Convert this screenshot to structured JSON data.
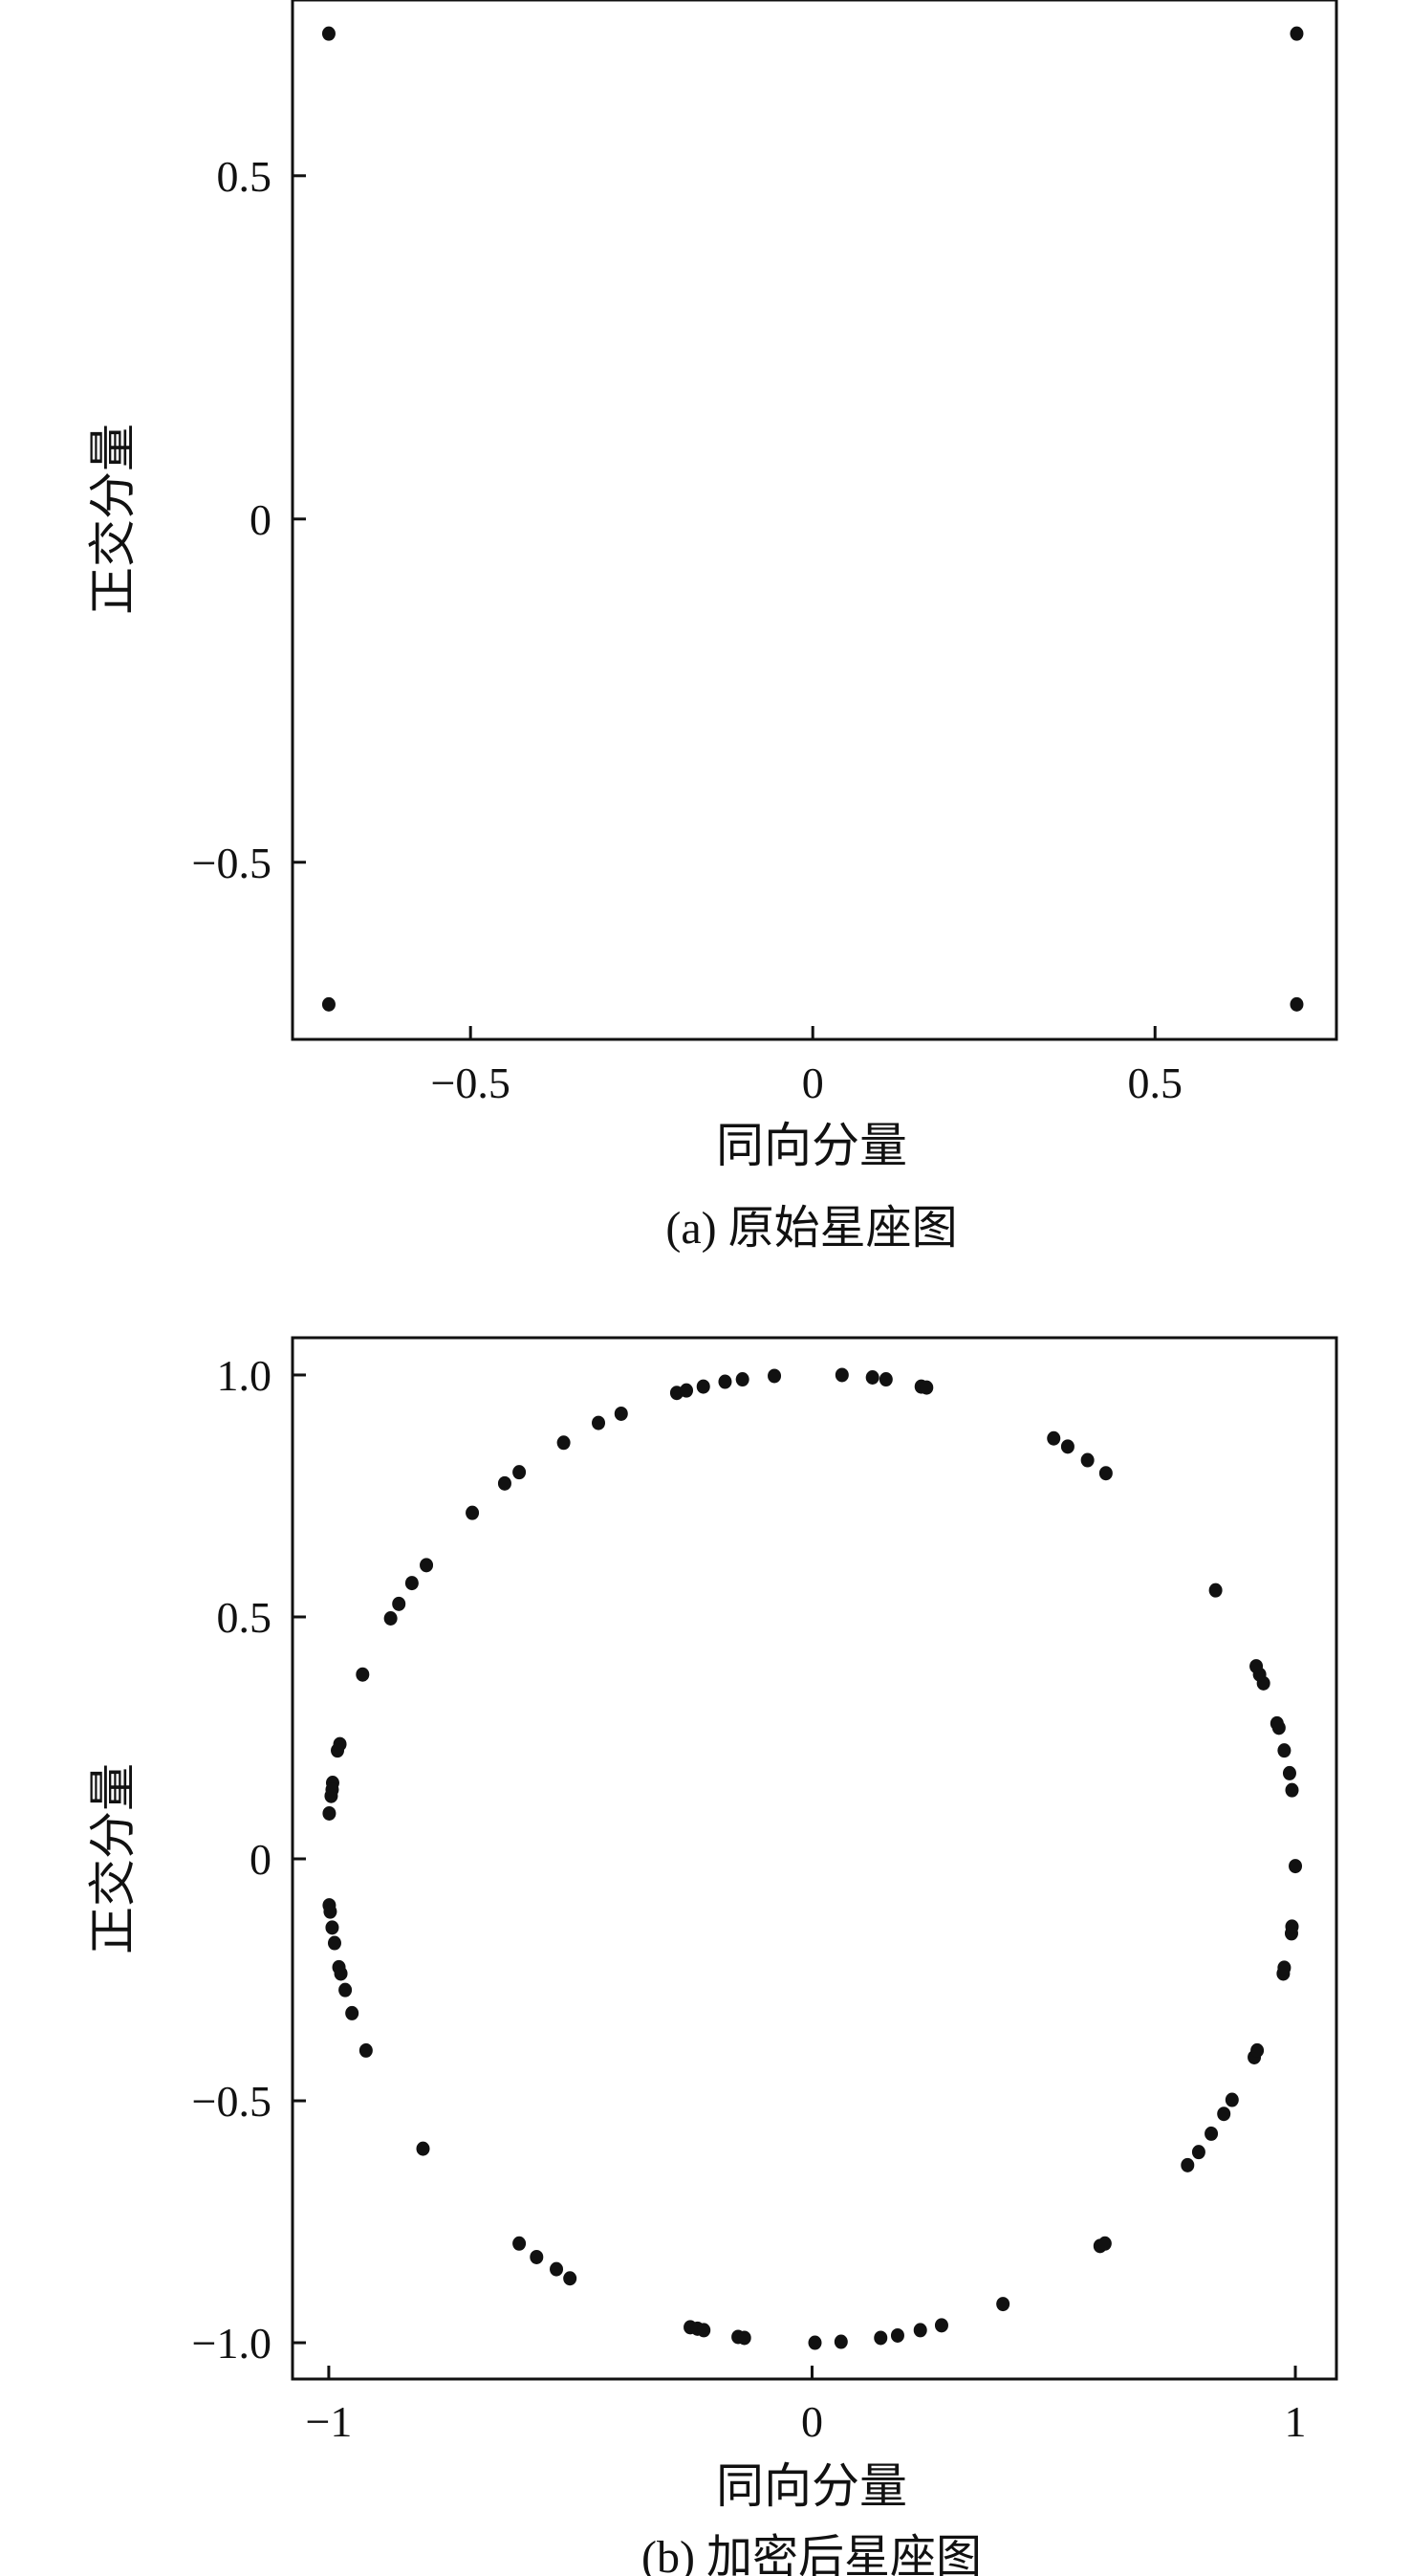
{
  "chart_data": [
    {
      "type": "scatter",
      "caption": "(a) 原始星座图",
      "xlabel": "同向分量",
      "ylabel": "正交分量",
      "xlim": [
        -0.76,
        0.765
      ],
      "ylim": [
        -0.758,
        0.756
      ],
      "xticks": [
        {
          "v": -0.5,
          "label": "−0.5"
        },
        {
          "v": 0,
          "label": "0"
        },
        {
          "v": 0.5,
          "label": "0.5"
        }
      ],
      "yticks": [
        {
          "v": 0.5,
          "label": "0.5"
        },
        {
          "v": 0,
          "label": "0"
        },
        {
          "v": -0.5,
          "label": "−0.5"
        }
      ],
      "grid": false,
      "marker_color": "#111111",
      "points": [
        [
          -0.707,
          0.707
        ],
        [
          0.707,
          0.707
        ],
        [
          -0.707,
          -0.707
        ],
        [
          0.707,
          -0.707
        ]
      ]
    },
    {
      "type": "scatter",
      "caption": "(b) 加密后星座图",
      "xlabel": "同向分量",
      "ylabel": "正交分量",
      "xlim": [
        -1.075,
        1.085
      ],
      "ylim": [
        -1.075,
        1.077
      ],
      "xticks": [
        {
          "v": -1,
          "label": "−1"
        },
        {
          "v": 0,
          "label": "0"
        },
        {
          "v": 1,
          "label": "1"
        }
      ],
      "yticks": [
        {
          "v": 1,
          "label": "1.0"
        },
        {
          "v": 0.5,
          "label": "0.5"
        },
        {
          "v": 0,
          "label": "0"
        },
        {
          "v": -0.5,
          "label": "−0.5"
        },
        {
          "v": -1,
          "label": "−1.0"
        }
      ],
      "grid": false,
      "marker_color": "#111111",
      "points": [
        [
          -0.28,
          0.963
        ],
        [
          -0.26,
          0.968
        ],
        [
          -0.225,
          0.976
        ],
        [
          -0.18,
          0.986
        ],
        [
          -0.144,
          0.991
        ],
        [
          -0.078,
          0.998
        ],
        [
          0.062,
          1.0
        ],
        [
          0.125,
          0.995
        ],
        [
          0.153,
          0.991
        ],
        [
          0.226,
          0.976
        ],
        [
          0.237,
          0.974
        ],
        [
          -0.395,
          0.92
        ],
        [
          -0.442,
          0.901
        ],
        [
          -0.514,
          0.86
        ],
        [
          -0.606,
          0.799
        ],
        [
          -0.636,
          0.776
        ],
        [
          -0.703,
          0.715
        ],
        [
          -0.798,
          0.607
        ],
        [
          -0.828,
          0.57
        ],
        [
          -0.855,
          0.527
        ],
        [
          -0.872,
          0.497
        ],
        [
          -0.93,
          0.381
        ],
        [
          -0.977,
          0.237
        ],
        [
          -0.982,
          0.224
        ],
        [
          -0.992,
          0.157
        ],
        [
          -0.993,
          0.143
        ],
        [
          -0.995,
          0.13
        ],
        [
          -0.999,
          0.094
        ],
        [
          -0.999,
          -0.096
        ],
        [
          -0.997,
          -0.109
        ],
        [
          -0.993,
          -0.142
        ],
        [
          -0.988,
          -0.174
        ],
        [
          -0.979,
          -0.224
        ],
        [
          -0.975,
          -0.237
        ],
        [
          -0.966,
          -0.271
        ],
        [
          -0.952,
          -0.319
        ],
        [
          -0.923,
          -0.396
        ],
        [
          -0.805,
          -0.599
        ],
        [
          -0.606,
          -0.795
        ],
        [
          -0.57,
          -0.823
        ],
        [
          -0.529,
          -0.848
        ],
        [
          -0.501,
          -0.867
        ],
        [
          -0.252,
          -0.968
        ],
        [
          -0.237,
          -0.971
        ],
        [
          -0.224,
          -0.974
        ],
        [
          -0.153,
          -0.988
        ],
        [
          -0.14,
          -0.99
        ],
        [
          0.006,
          -1.0
        ],
        [
          0.06,
          -0.998
        ],
        [
          0.142,
          -0.99
        ],
        [
          0.177,
          -0.985
        ],
        [
          0.224,
          -0.974
        ],
        [
          0.268,
          -0.964
        ],
        [
          0.395,
          -0.92
        ],
        [
          0.596,
          -0.8
        ],
        [
          0.606,
          -0.795
        ],
        [
          0.777,
          -0.633
        ],
        [
          0.8,
          -0.606
        ],
        [
          0.826,
          -0.568
        ],
        [
          0.852,
          -0.527
        ],
        [
          0.869,
          -0.498
        ],
        [
          0.915,
          -0.41
        ],
        [
          0.921,
          -0.396
        ],
        [
          0.975,
          -0.237
        ],
        [
          0.977,
          -0.225
        ],
        [
          0.992,
          -0.154
        ],
        [
          0.993,
          -0.14
        ],
        [
          1.0,
          -0.015
        ],
        [
          0.993,
          0.142
        ],
        [
          0.988,
          0.177
        ],
        [
          0.977,
          0.224
        ],
        [
          0.966,
          0.271
        ],
        [
          0.962,
          0.28
        ],
        [
          0.934,
          0.363
        ],
        [
          0.926,
          0.381
        ],
        [
          0.919,
          0.398
        ],
        [
          0.835,
          0.555
        ],
        [
          0.608,
          0.797
        ],
        [
          0.57,
          0.824
        ],
        [
          0.529,
          0.852
        ],
        [
          0.5,
          0.869
        ]
      ]
    }
  ]
}
